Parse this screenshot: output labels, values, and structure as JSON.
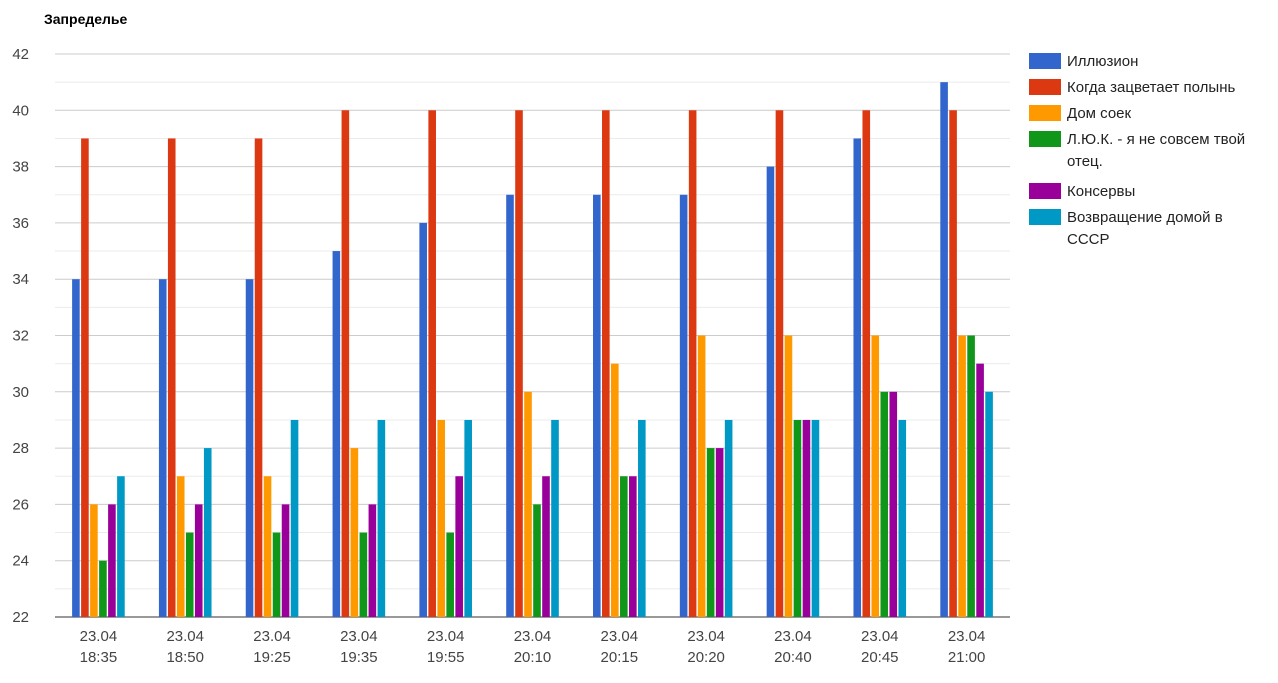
{
  "chart_data": {
    "type": "bar",
    "title": "Запределье",
    "xlabel": "",
    "ylabel": "",
    "ylim": [
      22,
      42
    ],
    "yticks": [
      22,
      24,
      26,
      28,
      30,
      32,
      34,
      36,
      38,
      40,
      42
    ],
    "grid": true,
    "legend_position": "right",
    "categories": [
      [
        "23.04",
        "18:35"
      ],
      [
        "23.04",
        "18:50"
      ],
      [
        "23.04",
        "19:25"
      ],
      [
        "23.04",
        "19:35"
      ],
      [
        "23.04",
        "19:55"
      ],
      [
        "23.04",
        "20:10"
      ],
      [
        "23.04",
        "20:15"
      ],
      [
        "23.04",
        "20:20"
      ],
      [
        "23.04",
        "20:40"
      ],
      [
        "23.04",
        "20:45"
      ],
      [
        "23.04",
        "21:00"
      ]
    ],
    "series": [
      {
        "name": "Иллюзион",
        "legend_lines": [
          "Иллюзион"
        ],
        "color": "#3366cc",
        "values": [
          34,
          34,
          34,
          35,
          36,
          37,
          37,
          37,
          38,
          39,
          41
        ]
      },
      {
        "name": "Когда зацветает полынь",
        "legend_lines": [
          "Когда зацветает полынь"
        ],
        "color": "#dc3912",
        "values": [
          39,
          39,
          39,
          40,
          40,
          40,
          40,
          40,
          40,
          40,
          40
        ]
      },
      {
        "name": "Дом соек",
        "legend_lines": [
          "Дом соек"
        ],
        "color": "#ff9900",
        "values": [
          26,
          27,
          27,
          28,
          29,
          30,
          31,
          32,
          32,
          32,
          32
        ]
      },
      {
        "name": "Л.Ю.К. - я не совсем твой отец.",
        "legend_lines": [
          "Л.Ю.К. - я не совсем твой",
          "отец."
        ],
        "color": "#109618",
        "values": [
          24,
          25,
          25,
          25,
          25,
          26,
          27,
          28,
          29,
          30,
          32
        ]
      },
      {
        "name": "Консервы",
        "legend_lines": [
          "Консервы"
        ],
        "color": "#990099",
        "values": [
          26,
          26,
          26,
          26,
          27,
          27,
          27,
          28,
          29,
          30,
          31
        ]
      },
      {
        "name": "Возвращение домой в СССР",
        "legend_lines": [
          "Возвращение домой в",
          "СССР"
        ],
        "color": "#0099c6",
        "values": [
          27,
          28,
          29,
          29,
          29,
          29,
          29,
          29,
          29,
          29,
          30
        ]
      }
    ]
  }
}
